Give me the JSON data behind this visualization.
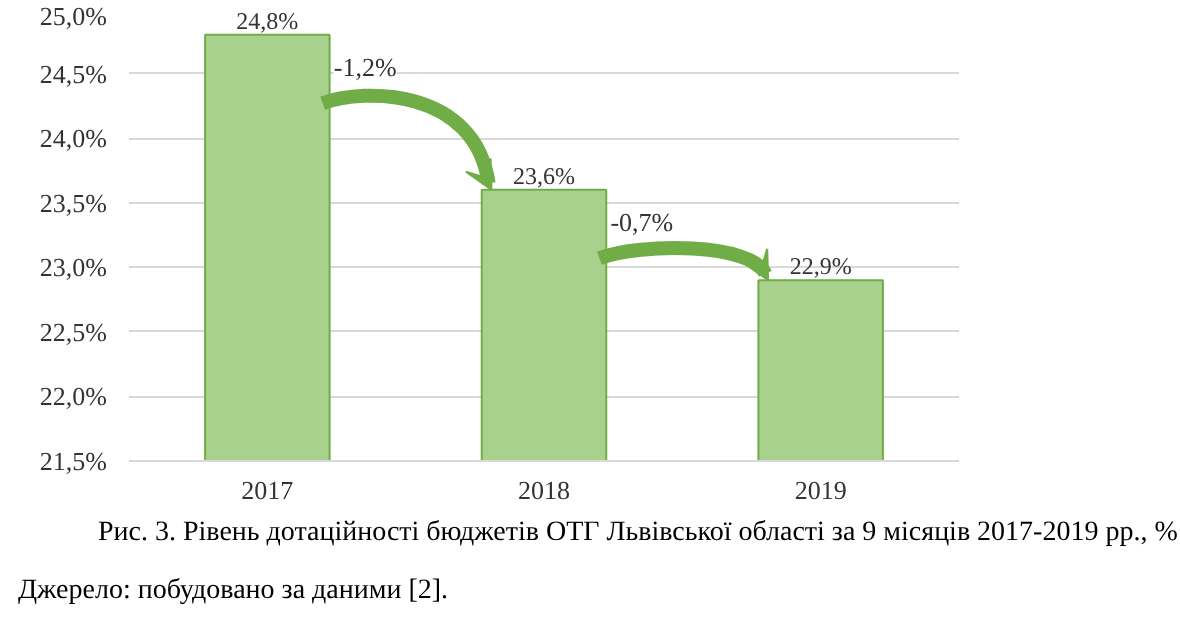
{
  "chart_data": {
    "type": "bar",
    "categories": [
      "2017",
      "2018",
      "2019"
    ],
    "values": [
      24.8,
      23.6,
      22.9
    ],
    "value_labels": [
      "24,8%",
      "23,6%",
      "22,9%"
    ],
    "color": "#a9d18e",
    "ylim": [
      21.5,
      25.0
    ],
    "yticks": [
      {
        "value": 21.5,
        "label": "21,5%"
      },
      {
        "value": 22.0,
        "label": "22,0%"
      },
      {
        "value": 22.5,
        "label": "22,5%"
      },
      {
        "value": 23.0,
        "label": "23,0%"
      },
      {
        "value": 23.5,
        "label": "23,5%"
      },
      {
        "value": 24.0,
        "label": "24,0%"
      },
      {
        "value": 24.5,
        "label": "24,5%"
      },
      {
        "value": 25.0,
        "label": "25,0%"
      }
    ],
    "grid": "y",
    "annotations": [
      "-1,2%",
      "-0,7%",
      "Рис. 3. Рівень дотаційності бюджетів ОТГ Львівської області за 9 місяців 2017-2019 рр., %",
      "Джерело: побудовано за даними [2]."
    ]
  }
}
